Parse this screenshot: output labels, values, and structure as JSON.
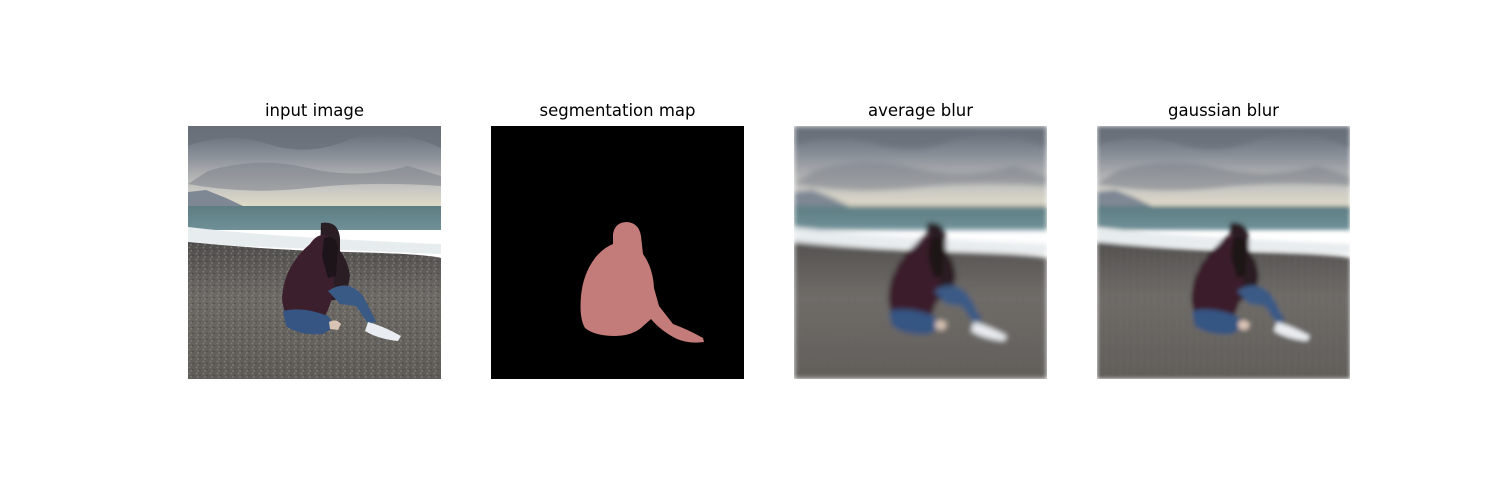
{
  "panels": [
    {
      "title": "input image"
    },
    {
      "title": "segmentation map"
    },
    {
      "title": "average blur"
    },
    {
      "title": "gaussian blur"
    }
  ],
  "colors": {
    "background": "#ffffff",
    "segmentation_background": "#000000",
    "segmentation_person": "#c47c7a"
  }
}
